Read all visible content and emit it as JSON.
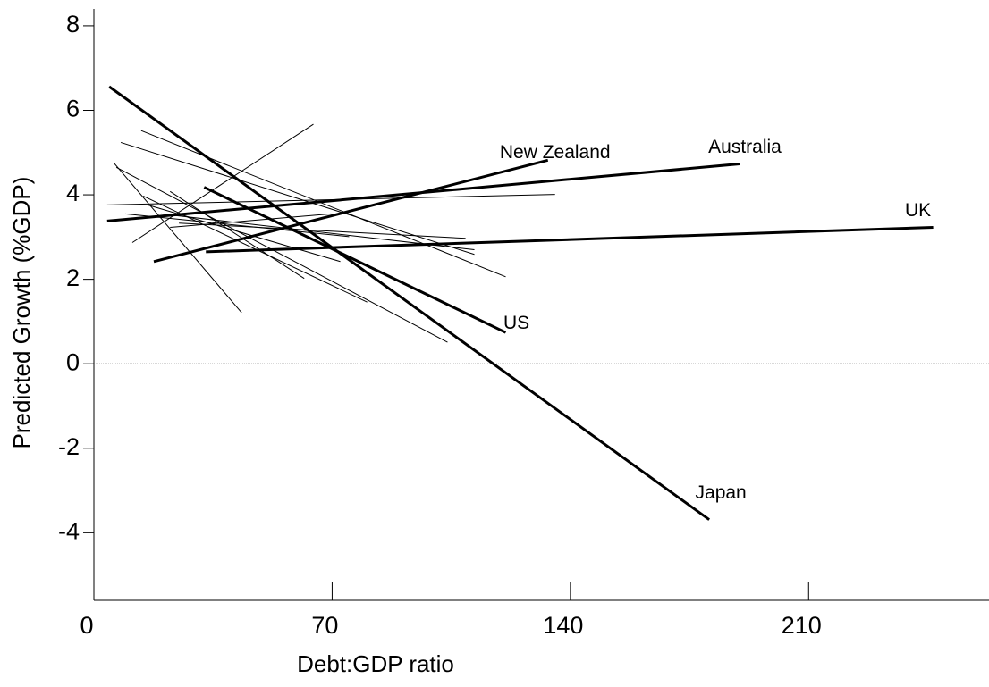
{
  "chart_data": {
    "type": "line",
    "xlabel": "Debt:GDP ratio",
    "ylabel": "Predicted Growth (%GDP)",
    "xlim": [
      0,
      263
    ],
    "ylim": [
      -5.6,
      8.4
    ],
    "xticks": [
      0,
      70,
      140,
      210
    ],
    "yticks": [
      -4,
      -2,
      0,
      2,
      4,
      6,
      8
    ],
    "reference_line": 0,
    "series": [
      {
        "name": "Japan",
        "color": "#000000",
        "x": [
          4.5,
          180.8
        ],
        "values": [
          6.56,
          -3.69
        ]
      },
      {
        "name": "US",
        "color": "#000000",
        "x": [
          32.4,
          121
        ],
        "values": [
          4.18,
          0.74
        ]
      },
      {
        "name": "New Zealand",
        "color": "#000000",
        "x": [
          17.6,
          133.4
        ],
        "values": [
          2.42,
          4.82
        ]
      },
      {
        "name": "Australia",
        "color": "#000000",
        "x": [
          3.9,
          189.7
        ],
        "values": [
          3.38,
          4.73
        ]
      },
      {
        "name": "UK",
        "color": "#000000",
        "x": [
          32.9,
          246.6
        ],
        "values": [
          2.65,
          3.23
        ]
      },
      {
        "color": "#000000",
        "x": [
          5.8,
          43.4
        ],
        "values": [
          4.76,
          1.21
        ]
      },
      {
        "color": "#000000",
        "x": [
          11.3,
          64.5
        ],
        "values": [
          2.87,
          5.67
        ]
      },
      {
        "color": "#000000",
        "x": [
          3.9,
          135.5
        ],
        "values": [
          3.76,
          4.01
        ]
      },
      {
        "color": "#000000",
        "x": [
          7.9,
          111.8
        ],
        "values": [
          5.24,
          2.59
        ]
      },
      {
        "color": "#000000",
        "x": [
          13.9,
          121
        ],
        "values": [
          5.52,
          2.06
        ]
      },
      {
        "color": "#000000",
        "x": [
          6.6,
          103.9
        ],
        "values": [
          4.65,
          0.51
        ]
      },
      {
        "color": "#000000",
        "x": [
          14.5,
          80.3
        ],
        "values": [
          3.97,
          1.46
        ]
      },
      {
        "color": "#000000",
        "x": [
          22.4,
          61.8
        ],
        "values": [
          4.08,
          2.02
        ]
      },
      {
        "color": "#000000",
        "x": [
          15.8,
          72.4
        ],
        "values": [
          3.76,
          2.42
        ]
      },
      {
        "color": "#000000",
        "x": [
          19.7,
          111.8
        ],
        "values": [
          3.55,
          2.7
        ]
      },
      {
        "color": "#000000",
        "x": [
          25,
          109.2
        ],
        "values": [
          3.33,
          2.97
        ]
      },
      {
        "color": "#000000",
        "x": [
          9.2,
          75
        ],
        "values": [
          3.55,
          3.01
        ]
      },
      {
        "color": "#000000",
        "x": [
          22.4,
          69.7
        ],
        "values": [
          3.23,
          3.55
        ]
      }
    ]
  }
}
